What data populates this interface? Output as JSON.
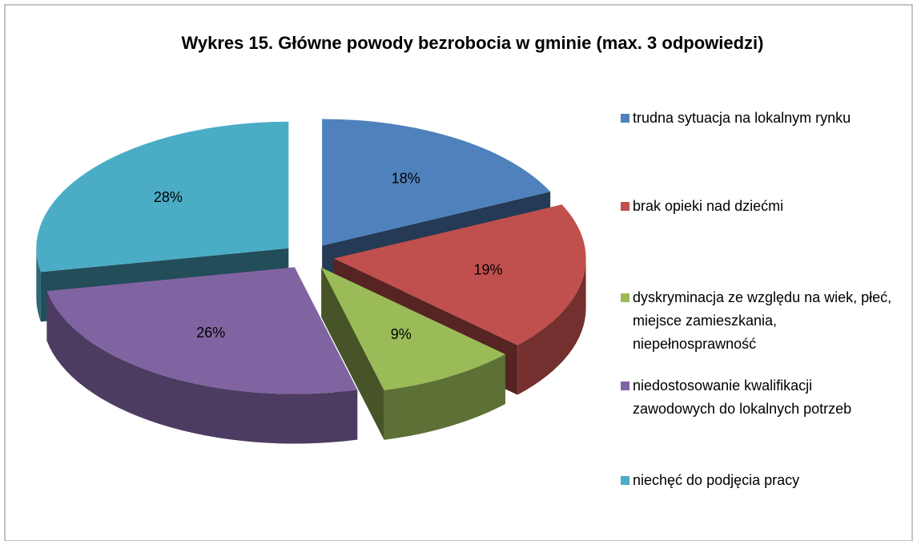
{
  "chart_data": {
    "type": "pie",
    "title": "Wykres 15. Główne powody bezrobocia w gminie (max. 3 odpowiedzi)",
    "categories": [
      "trudna sytuacja na lokalnym rynku",
      "brak opieki nad dziećmi",
      "dyskryminacja ze względu na wiek, płeć, miejsce zamieszkania, niepełnosprawność",
      "niedostosowanie kwalifikacji zawodowych do lokalnych potrzeb",
      "niechęć do podjęcia pracy"
    ],
    "values": [
      18,
      19,
      9,
      26,
      28
    ],
    "value_labels": [
      "18%",
      "19%",
      "9%",
      "26%",
      "28%"
    ],
    "colors": [
      "#4f81bd",
      "#c0504d",
      "#9bbb59",
      "#8064a2",
      "#4bacc6"
    ],
    "legend": "right"
  }
}
